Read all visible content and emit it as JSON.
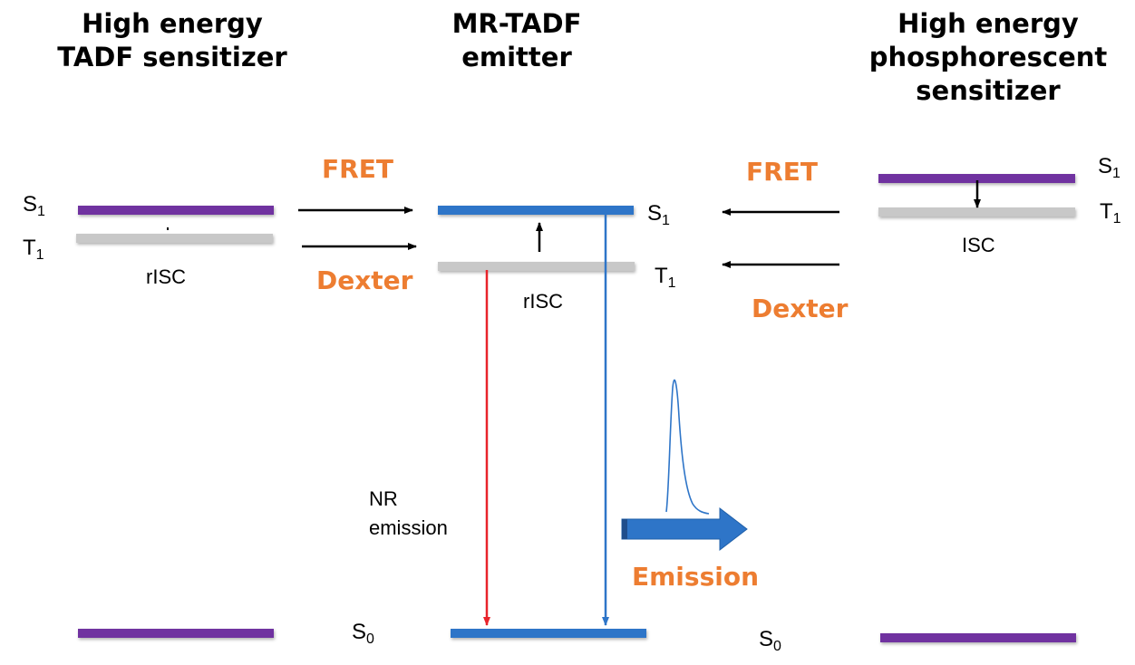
{
  "columns": {
    "left_title_1": "High energy",
    "left_title_2": "TADF sensitizer",
    "middle_title_1": "MR-TADF",
    "middle_title_2": "emitter",
    "right_title_1": "High energy",
    "right_title_2": "phosphorescent",
    "right_title_3": "sensitizer"
  },
  "levels": {
    "s1_main": "S",
    "s1_sub": "1",
    "t1_main": "T",
    "t1_sub": "1",
    "s0_main": "S",
    "s0_sub": "0"
  },
  "labels": {
    "fret_left": "FRET",
    "dexter_left": "Dexter",
    "fret_right": "FRET",
    "dexter_right": "Dexter",
    "risc_left": "rISC",
    "risc_middle": "rISC",
    "isc_right": "ISC",
    "nr_line1": "NR",
    "nr_line2": "emission",
    "emission": "Emission"
  },
  "colors": {
    "singlet_purple": "#7030A0",
    "emitter_blue": "#2E75C8",
    "triplet_grey": "#C8C8C8",
    "nonradiative_red": "#E8232A",
    "label_orange": "#ED7D31",
    "emission_arrow": "#2E75C8"
  }
}
